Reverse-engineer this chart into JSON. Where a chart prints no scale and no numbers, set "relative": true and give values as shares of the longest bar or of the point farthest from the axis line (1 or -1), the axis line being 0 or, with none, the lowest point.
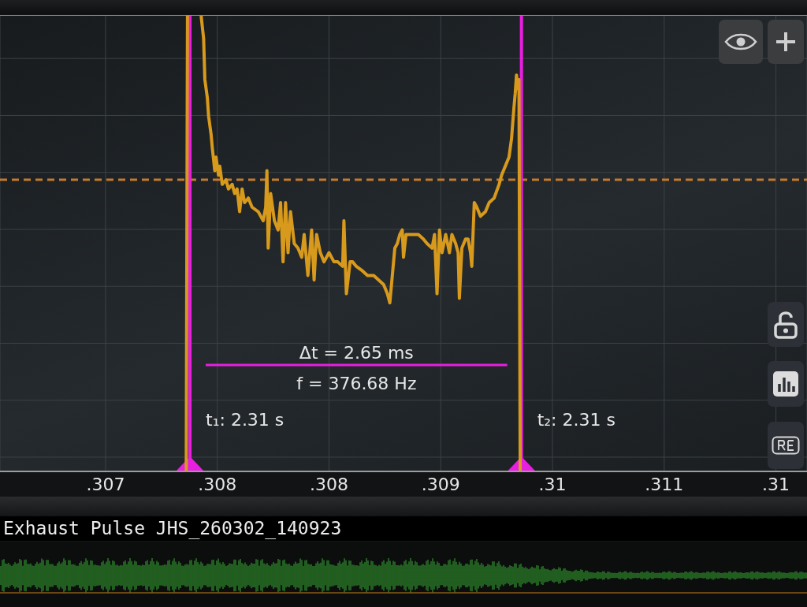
{
  "chart_data": {
    "type": "line",
    "title": "Exhaust Pulse JHS_260302_140923",
    "relative": true,
    "color": "#d89a1c",
    "tick_labels": "x",
    "grid": true,
    "xlim": [
      0.3058,
      0.3123
    ],
    "xticks": [
      {
        "value": 0.30665,
        "label": ".307"
      },
      {
        "value": 0.30755,
        "label": ".308"
      },
      {
        "value": 0.30845,
        "label": ".308"
      },
      {
        "value": 0.30935,
        "label": ".309"
      },
      {
        "value": 0.31025,
        "label": ".31"
      },
      {
        "value": 0.31115,
        "label": ".311"
      },
      {
        "value": 0.31205,
        "label": ".31"
      }
    ],
    "x": [
      0.3073,
      0.30731,
      0.30737,
      0.30742,
      0.30744,
      0.30745,
      0.30747,
      0.30748,
      0.3075,
      0.30751,
      0.30753,
      0.30754,
      0.30756,
      0.30757,
      0.30759,
      0.30762,
      0.30764,
      0.30767,
      0.30769,
      0.30771,
      0.30773,
      0.30775,
      0.30777,
      0.3078,
      0.30783,
      0.30788,
      0.30792,
      0.30794,
      0.30795,
      0.30796,
      0.30798,
      0.30801,
      0.30804,
      0.30806,
      0.30808,
      0.3081,
      0.30812,
      0.30814,
      0.30817,
      0.3082,
      0.30823,
      0.30825,
      0.30828,
      0.30831,
      0.30833,
      0.30835,
      0.30838,
      0.30841,
      0.30845,
      0.30849,
      0.30852,
      0.30856,
      0.30857,
      0.30859,
      0.30862,
      0.30864,
      0.30867,
      0.30872,
      0.30876,
      0.30881,
      0.30885,
      0.30889,
      0.30892,
      0.30894,
      0.30896,
      0.30898,
      0.309,
      0.30902,
      0.30904,
      0.30905,
      0.30907,
      0.30912,
      0.30917,
      0.30921,
      0.30924,
      0.30928,
      0.3093,
      0.30932,
      0.30934,
      0.30936,
      0.30939,
      0.30942,
      0.30944,
      0.30947,
      0.30949,
      0.3095,
      0.30952,
      0.30955,
      0.30957,
      0.30959,
      0.3096,
      0.30962,
      0.30964,
      0.30967,
      0.30971,
      0.30974,
      0.30978,
      0.30982,
      0.30984,
      0.30987,
      0.3099,
      0.30992,
      0.30994,
      0.30995,
      0.30996,
      0.30997,
      0.30998,
      0.30999
    ],
    "values": [
      0,
      1,
      null,
      1,
      0.95,
      0.86,
      0.82,
      0.78,
      0.74,
      0.71,
      0.66,
      0.69,
      0.65,
      0.67,
      0.63,
      0.64,
      0.62,
      0.63,
      0.61,
      0.62,
      0.57,
      0.62,
      0.59,
      0.6,
      0.58,
      0.57,
      0.55,
      0.58,
      0.66,
      0.49,
      0.61,
      0.55,
      0.53,
      0.59,
      0.46,
      0.59,
      0.48,
      0.57,
      0.5,
      0.49,
      0.47,
      0.52,
      0.43,
      0.53,
      0.42,
      0.52,
      0.48,
      0.46,
      0.48,
      0.46,
      0.46,
      0.45,
      0.55,
      0.39,
      0.46,
      0.46,
      0.45,
      0.44,
      0.43,
      0.43,
      0.42,
      0.41,
      0.39,
      0.37,
      0.43,
      0.49,
      0.5,
      0.52,
      0.53,
      0.47,
      0.52,
      0.52,
      0.52,
      0.51,
      0.5,
      0.49,
      0.52,
      0.39,
      0.53,
      0.48,
      0.52,
      0.48,
      0.52,
      0.5,
      0.48,
      0.38,
      0.49,
      0.51,
      0.51,
      0.48,
      0.45,
      0.59,
      0.58,
      0.56,
      0.57,
      0.59,
      0.6,
      0.63,
      0.65,
      0.67,
      0.69,
      0.73,
      0.8,
      0.83,
      0.87,
      0.84,
      0.86,
      0
    ],
    "ref_lines": [
      {
        "axis": "y",
        "value": 0.64,
        "color": "#c27a30",
        "line_style": "dashed"
      },
      {
        "axis": "x",
        "value": 0.30733,
        "color": "#e81fe0"
      },
      {
        "axis": "x",
        "value": 0.31,
        "color": "#e81fe0"
      }
    ],
    "annotations": [
      "Δt = 2.65 ms",
      "f = 376.68 Hz",
      "t₁: 2.31 s",
      "t₂: 2.31 s"
    ]
  }
}
